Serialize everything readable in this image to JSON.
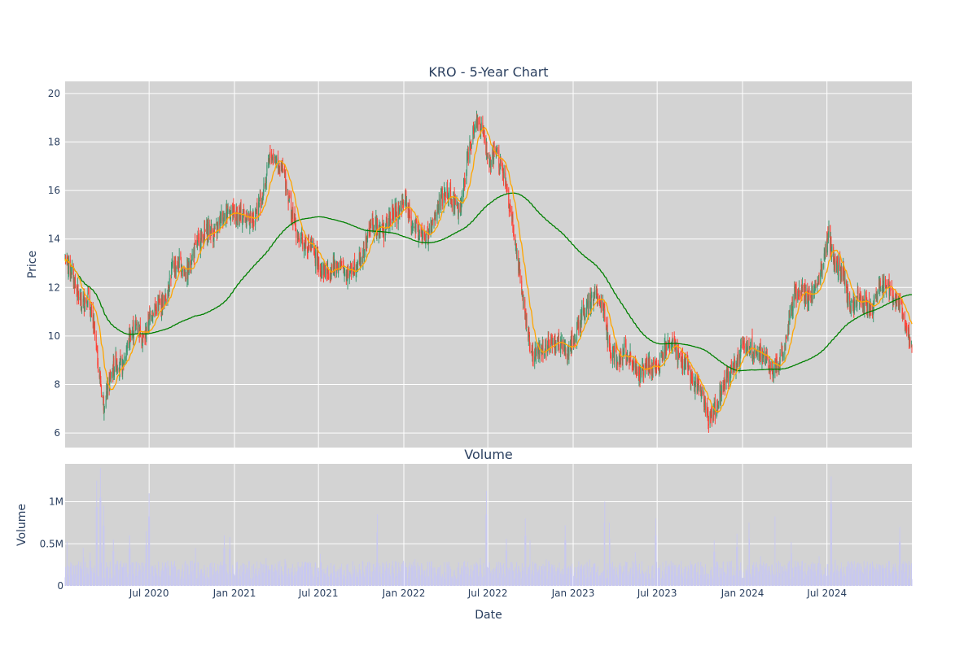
{
  "chart_data": [
    {
      "type": "candlestick",
      "title": "KRO - 5-Year Chart",
      "xlabel": "",
      "ylabel": "Price",
      "ylim": [
        5.4,
        20.5
      ],
      "y_ticks": [
        6,
        8,
        10,
        12,
        14,
        16,
        18,
        20
      ],
      "x_range": [
        "2020-01-02",
        "2024-12-31"
      ],
      "grid": true,
      "colors": {
        "up": "#3d9970",
        "down": "#ff4136",
        "ma_short": "#ffa500",
        "ma_long": "#008000",
        "plot_bg": "#d3d3d3"
      },
      "series": [
        {
          "kind": "close",
          "x": [
            "2020-01-02",
            "2020-01-20",
            "2020-02-05",
            "2020-02-20",
            "2020-03-05",
            "2020-03-15",
            "2020-03-25",
            "2020-04-05",
            "2020-04-20",
            "2020-05-05",
            "2020-05-20",
            "2020-06-05",
            "2020-06-20",
            "2020-07-05",
            "2020-07-20",
            "2020-08-05",
            "2020-08-20",
            "2020-09-05",
            "2020-09-20",
            "2020-10-05",
            "2020-10-20",
            "2020-11-05",
            "2020-11-20",
            "2020-12-05",
            "2020-12-20",
            "2021-01-05",
            "2021-01-20",
            "2021-02-05",
            "2021-02-20",
            "2021-03-05",
            "2021-03-20",
            "2021-04-05",
            "2021-04-20",
            "2021-05-05",
            "2021-05-20",
            "2021-06-05",
            "2021-06-20",
            "2021-07-05",
            "2021-07-20",
            "2021-08-05",
            "2021-08-20",
            "2021-09-05",
            "2021-09-20",
            "2021-10-05",
            "2021-10-20",
            "2021-11-05",
            "2021-11-20",
            "2021-12-05",
            "2021-12-20",
            "2022-01-05",
            "2022-01-20",
            "2022-02-05",
            "2022-02-20",
            "2022-03-05",
            "2022-03-20",
            "2022-04-05",
            "2022-04-20",
            "2022-05-05",
            "2022-05-20",
            "2022-06-05",
            "2022-06-20",
            "2022-07-05",
            "2022-07-20",
            "2022-08-05",
            "2022-08-20",
            "2022-09-05",
            "2022-09-20",
            "2022-10-05",
            "2022-10-20",
            "2022-11-05",
            "2022-11-20",
            "2022-12-05",
            "2022-12-20",
            "2023-01-05",
            "2023-01-20",
            "2023-02-05",
            "2023-02-20",
            "2023-03-05",
            "2023-03-20",
            "2023-04-05",
            "2023-04-20",
            "2023-05-05",
            "2023-05-20",
            "2023-06-05",
            "2023-06-20",
            "2023-07-05",
            "2023-07-20",
            "2023-08-05",
            "2023-08-20",
            "2023-09-05",
            "2023-09-20",
            "2023-10-05",
            "2023-10-20",
            "2023-11-05",
            "2023-11-20",
            "2023-12-05",
            "2023-12-20",
            "2024-01-05",
            "2024-01-20",
            "2024-02-05",
            "2024-02-20",
            "2024-03-05",
            "2024-03-20",
            "2024-04-05",
            "2024-04-20",
            "2024-05-05",
            "2024-05-20",
            "2024-06-05",
            "2024-06-20",
            "2024-07-05",
            "2024-07-20",
            "2024-08-05",
            "2024-08-20",
            "2024-09-05",
            "2024-09-20",
            "2024-10-05",
            "2024-10-20",
            "2024-11-05",
            "2024-11-20",
            "2024-12-05",
            "2024-12-20",
            "2024-12-31"
          ],
          "y": [
            13.2,
            12.4,
            11.3,
            11.6,
            10.2,
            8.5,
            7.2,
            8.0,
            9.0,
            8.7,
            10.0,
            10.5,
            9.8,
            11.0,
            11.2,
            11.5,
            12.8,
            13.0,
            12.5,
            13.5,
            14.0,
            14.4,
            14.2,
            15.0,
            15.2,
            14.9,
            15.0,
            14.8,
            15.3,
            16.0,
            17.5,
            17.2,
            16.5,
            15.0,
            14.0,
            13.8,
            13.5,
            12.8,
            12.6,
            13.0,
            12.8,
            12.6,
            13.0,
            13.3,
            14.5,
            14.6,
            14.3,
            15.0,
            15.1,
            15.6,
            14.5,
            14.2,
            14.0,
            14.6,
            15.5,
            16.0,
            15.5,
            15.3,
            17.6,
            19.0,
            18.4,
            17.0,
            17.6,
            16.5,
            15.0,
            13.0,
            10.8,
            9.2,
            9.4,
            9.6,
            9.8,
            9.6,
            9.3,
            10.0,
            10.8,
            11.3,
            11.7,
            11.4,
            9.5,
            9.0,
            9.4,
            9.0,
            8.3,
            8.8,
            8.7,
            8.9,
            9.5,
            9.6,
            9.0,
            8.7,
            8.0,
            7.8,
            6.6,
            7.0,
            8.0,
            8.5,
            9.0,
            9.8,
            9.5,
            9.2,
            9.0,
            8.6,
            8.9,
            9.8,
            11.7,
            12.0,
            11.5,
            12.0,
            12.8,
            14.1,
            13.0,
            12.6,
            11.0,
            11.6,
            11.4,
            11.0,
            12.0,
            12.2,
            11.6,
            11.4,
            10.2,
            9.7
          ]
        },
        {
          "kind": "moving-average",
          "color": "#ffa500",
          "x": [],
          "y": []
        },
        {
          "kind": "moving-average",
          "color": "#008000",
          "x": [],
          "y": []
        }
      ]
    },
    {
      "type": "bar",
      "title": "Volume",
      "xlabel": "Date",
      "ylabel": "Volume",
      "ylim": [
        0,
        1450000
      ],
      "y_ticks": [
        0,
        500000,
        1000000
      ],
      "y_tick_labels": [
        "0",
        "0.5M",
        "1M"
      ],
      "x_ticks": [
        "2020-07-01",
        "2021-01-01",
        "2021-07-01",
        "2022-01-01",
        "2022-07-01",
        "2023-01-01",
        "2023-07-01",
        "2024-01-01",
        "2024-07-01"
      ],
      "x_tick_labels": [
        "Jul 2020",
        "Jan 2021",
        "Jul 2021",
        "Jan 2022",
        "Jul 2022",
        "Jan 2023",
        "Jul 2023",
        "Jan 2024",
        "Jul 2024"
      ],
      "bar_color": "#c8c8f0",
      "series": [
        {
          "x": [
            "2020-01-05",
            "2020-02-10",
            "2020-02-25",
            "2020-03-10",
            "2020-03-18",
            "2020-03-25",
            "2020-04-15",
            "2020-05-20",
            "2020-06-25",
            "2020-07-01",
            "2020-08-20",
            "2020-10-10",
            "2020-12-10",
            "2020-12-22",
            "2021-03-10",
            "2021-04-20",
            "2021-07-05",
            "2021-08-20",
            "2021-10-15",
            "2021-11-05",
            "2022-01-25",
            "2022-03-20",
            "2022-05-10",
            "2022-06-15",
            "2022-06-28",
            "2022-08-10",
            "2022-09-20",
            "2022-10-01",
            "2022-11-05",
            "2022-12-15",
            "2023-02-05",
            "2023-03-10",
            "2023-03-20",
            "2023-05-15",
            "2023-06-28",
            "2023-09-10",
            "2023-11-01",
            "2023-12-20",
            "2024-01-15",
            "2024-02-10",
            "2024-03-10",
            "2024-04-15",
            "2024-05-25",
            "2024-06-15",
            "2024-07-10",
            "2024-07-20",
            "2024-08-25",
            "2024-10-05",
            "2024-11-10",
            "2024-12-05"
          ],
          "y": [
            700000,
            450000,
            400000,
            1250000,
            1400000,
            950000,
            550000,
            600000,
            650000,
            1100000,
            250000,
            600000,
            600000,
            580000,
            330000,
            320000,
            380000,
            200000,
            280000,
            850000,
            320000,
            330000,
            240000,
            330000,
            1130000,
            560000,
            800000,
            720000,
            420000,
            720000,
            420000,
            1000000,
            750000,
            400000,
            800000,
            380000,
            540000,
            620000,
            750000,
            470000,
            1100000,
            520000,
            300000,
            470000,
            1300000,
            420000,
            260000,
            150000,
            300000,
            700000
          ]
        }
      ]
    }
  ]
}
